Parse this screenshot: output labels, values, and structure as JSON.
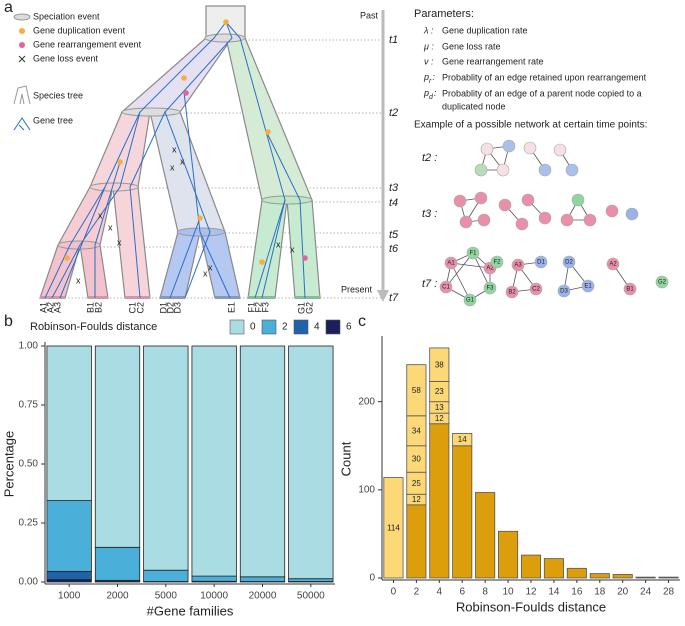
{
  "panel_a": {
    "label": "a",
    "legend": [
      "Speciation event",
      "Gene duplication event",
      "Gene rearrangement event",
      "Gene loss event",
      "Species tree",
      "Gene tree"
    ],
    "past": "Past",
    "present": "Present",
    "times": [
      "t1",
      "t2",
      "t3",
      "t4",
      "t5",
      "t6",
      "t7"
    ],
    "leaves": [
      "A1",
      "A2",
      "A3",
      "B1",
      "B2",
      "C1",
      "C2",
      "D1",
      "D2",
      "D3",
      "E1",
      "F1",
      "F2",
      "F3",
      "G1",
      "G2"
    ],
    "parameters": {
      "title": "Parameters:",
      "items": [
        {
          "symbol": "λ :",
          "text": "Gene duplication rate"
        },
        {
          "symbol": "μ :",
          "text": "Gene loss rate"
        },
        {
          "symbol": "ν :",
          "text": "Gene rearrangement rate"
        },
        {
          "symbol": "p",
          "sub": "r",
          "colon": ":",
          "text": "Probablity of an edge retained upon rearrangement"
        },
        {
          "symbol": "p",
          "sub": "d",
          "colon": ":",
          "text": "Probablity of an edge of a parent node copied to a",
          "text2": "duplicated node"
        }
      ]
    },
    "example": {
      "title": "Example of a possible network at certain time points:",
      "rows": [
        "t2 :",
        "t3 :",
        "t7 :"
      ],
      "t7_nodes": [
        "A1",
        "A2",
        "C1",
        "F1",
        "F2",
        "F3",
        "G1",
        "A3",
        "D1",
        "B2",
        "C2",
        "D2",
        "D3",
        "E1",
        "A2",
        "B1",
        "G2"
      ]
    }
  },
  "chart_data": [
    {
      "type": "bar",
      "stacked": true,
      "panel_label": "b",
      "legend_title": "Robinson-Foulds distance",
      "x_label": "#Gene families",
      "y_label": "Percentage",
      "categories": [
        "1000",
        "2000",
        "5000",
        "10000",
        "20000",
        "50000"
      ],
      "series": [
        {
          "name": "6",
          "color": "#1b1f5c",
          "values": [
            0.01,
            0.002,
            0,
            0,
            0,
            0
          ]
        },
        {
          "name": "4",
          "color": "#1f63a8",
          "values": [
            0.035,
            0.005,
            0.002,
            0.003,
            0.002,
            0.002
          ]
        },
        {
          "name": "2",
          "color": "#4ab0da",
          "values": [
            0.3,
            0.14,
            0.048,
            0.022,
            0.02,
            0.012
          ]
        },
        {
          "name": "0",
          "color": "#a9dde3",
          "values": [
            0.655,
            0.853,
            0.95,
            0.975,
            0.978,
            0.986
          ]
        }
      ],
      "legend_order": [
        3,
        2,
        1,
        0
      ],
      "edgecolor": "#222",
      "ylim": [
        0,
        1
      ],
      "yticks": [
        {
          "value": 0,
          "label": "0.00"
        },
        {
          "value": 0.25,
          "label": "0.25"
        },
        {
          "value": 0.5,
          "label": "0.50"
        },
        {
          "value": 0.75,
          "label": "0.75"
        },
        {
          "value": 1,
          "label": "1.00"
        }
      ]
    },
    {
      "type": "bar",
      "stacked": true,
      "panel_label": "c",
      "x_label": "Robinson-Foulds distance",
      "y_label": "Count",
      "categories": [
        "0",
        "2",
        "4",
        "6",
        "8",
        "10",
        "12",
        "14",
        "16",
        "18",
        "20",
        "24",
        "28"
      ],
      "series": [
        {
          "color": "#dc9f0b",
          "values": [
            null,
            83,
            175,
            150,
            97,
            53,
            26,
            22,
            11,
            5,
            4,
            1,
            1
          ]
        },
        {
          "color": "#fcd877",
          "show_values": true,
          "values": [
            114,
            12,
            12,
            14,
            null,
            null,
            null,
            null,
            null,
            null,
            null,
            null,
            null
          ]
        },
        {
          "color": "#fcd877",
          "show_values": true,
          "values": [
            null,
            25,
            13,
            null,
            null,
            null,
            null,
            null,
            null,
            null,
            null,
            null,
            null
          ]
        },
        {
          "color": "#fcd877",
          "show_values": true,
          "values": [
            null,
            30,
            23,
            null,
            null,
            null,
            null,
            null,
            null,
            null,
            null,
            null,
            null
          ]
        },
        {
          "color": "#fcd877",
          "show_values": true,
          "values": [
            null,
            34,
            38,
            null,
            null,
            null,
            null,
            null,
            null,
            null,
            null,
            null,
            null
          ]
        },
        {
          "color": "#fcd877",
          "show_values": true,
          "values": [
            null,
            58,
            null,
            null,
            null,
            null,
            null,
            null,
            null,
            null,
            null,
            null,
            null
          ]
        }
      ],
      "edgecolor": "#555",
      "ylim": [
        0,
        270
      ],
      "yticks": [
        0,
        100,
        200
      ]
    }
  ]
}
